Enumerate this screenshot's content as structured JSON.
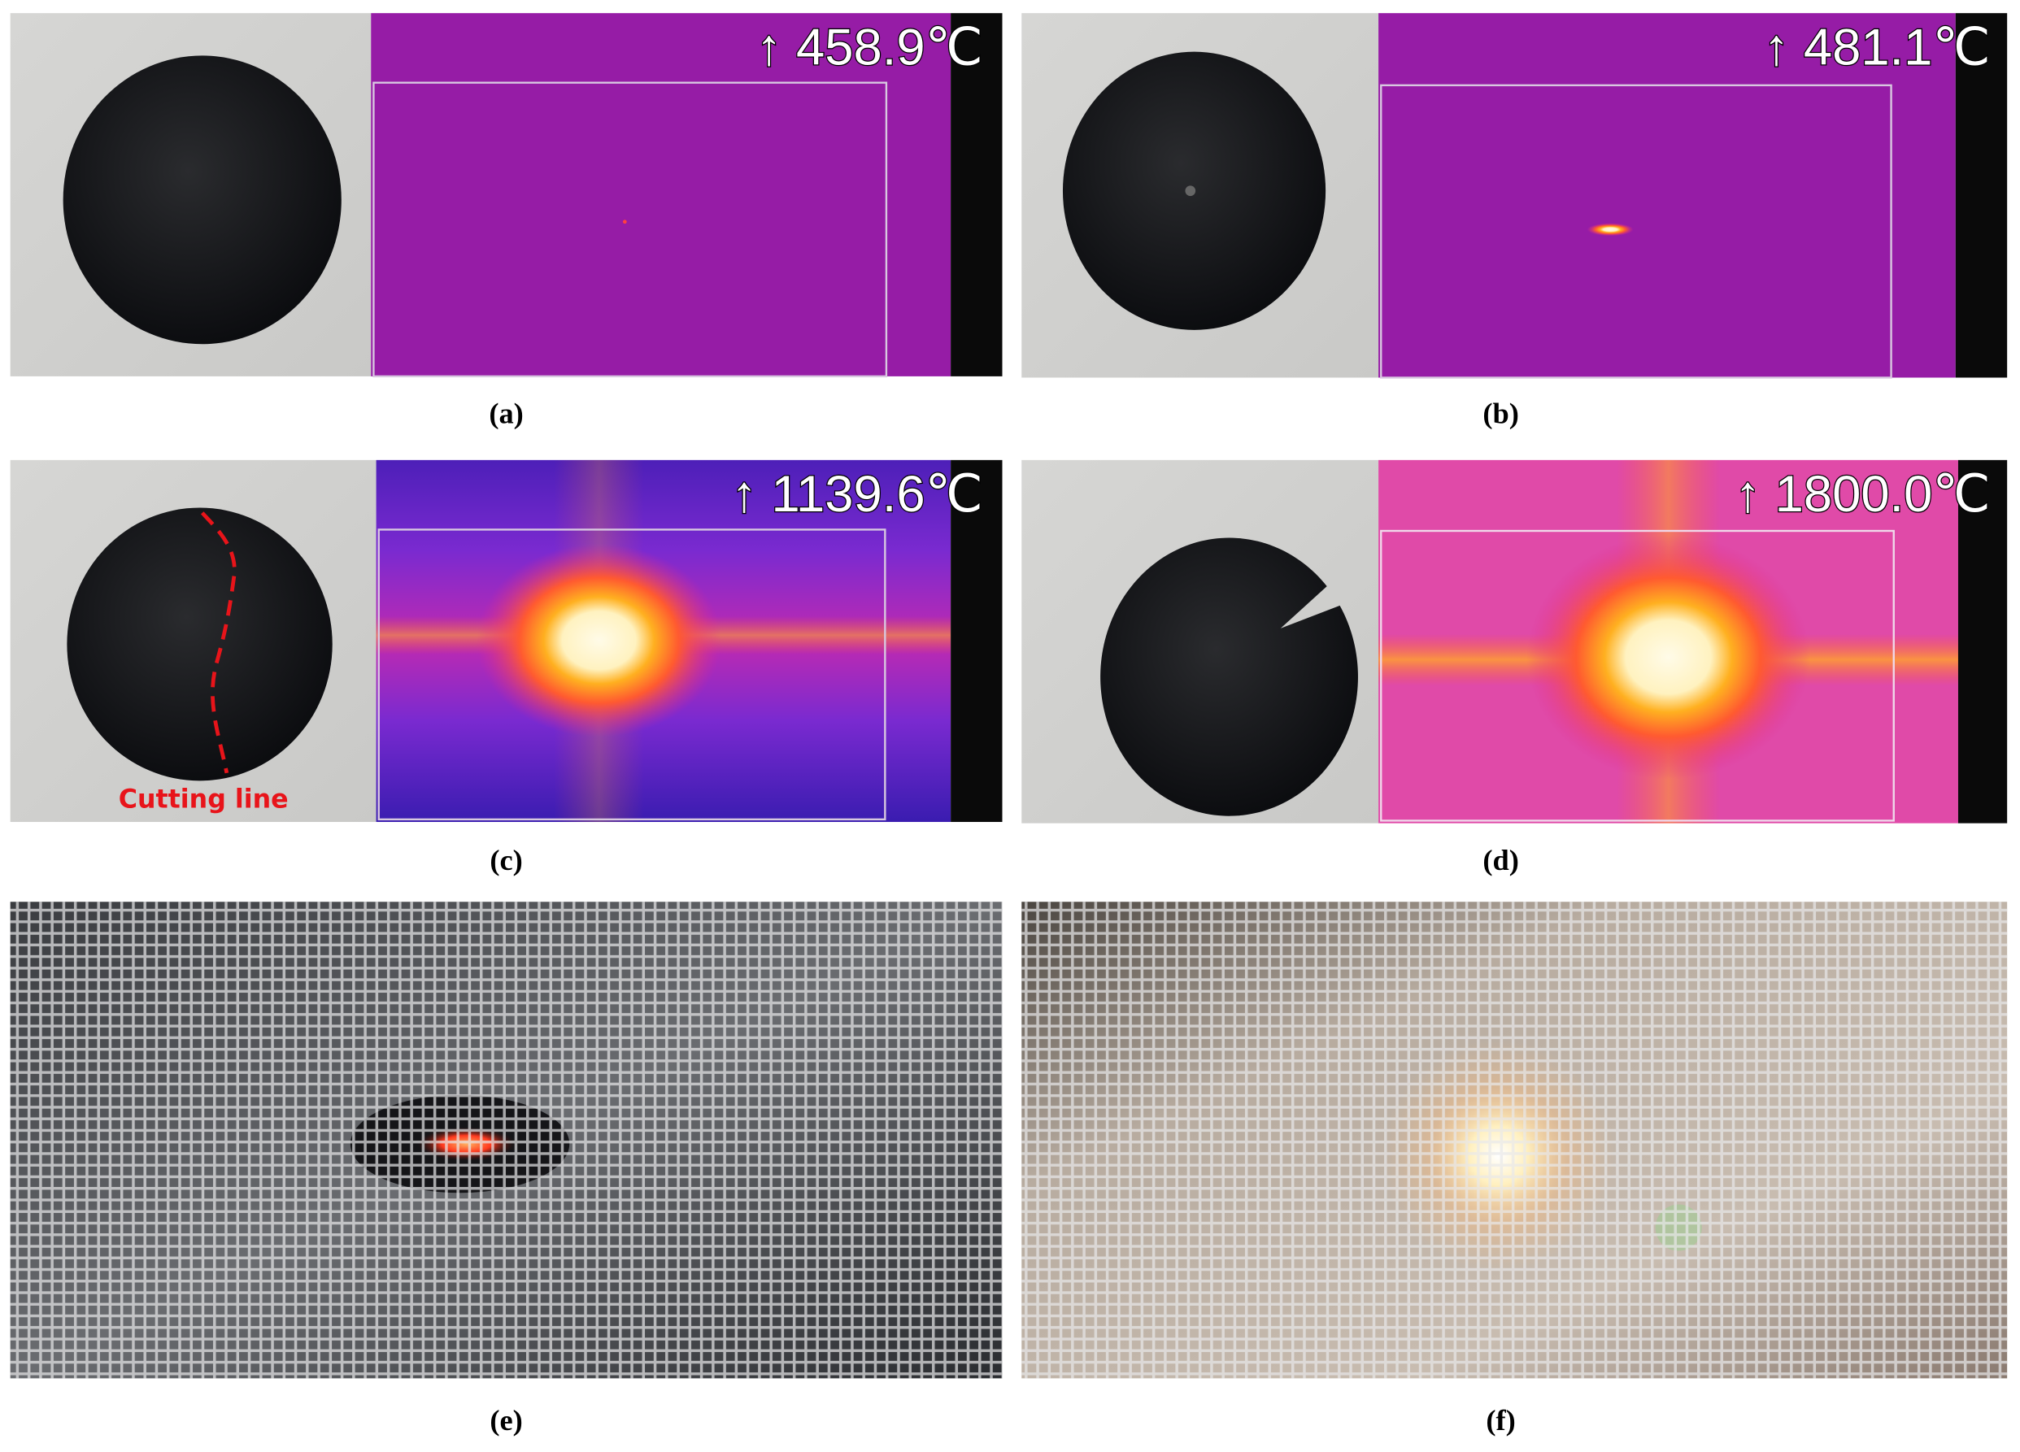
{
  "panels": [
    {
      "label": "(a)",
      "temperature": "↑ 458.9℃"
    },
    {
      "label": "(b)",
      "temperature": "↑ 481.1℃"
    },
    {
      "label": "(c)",
      "temperature": "↑ 1139.6℃",
      "annotation": "Cutting line"
    },
    {
      "label": "(d)",
      "temperature": "↑ 1800.0℃"
    },
    {
      "label": "(e)"
    },
    {
      "label": "(f)"
    }
  ]
}
